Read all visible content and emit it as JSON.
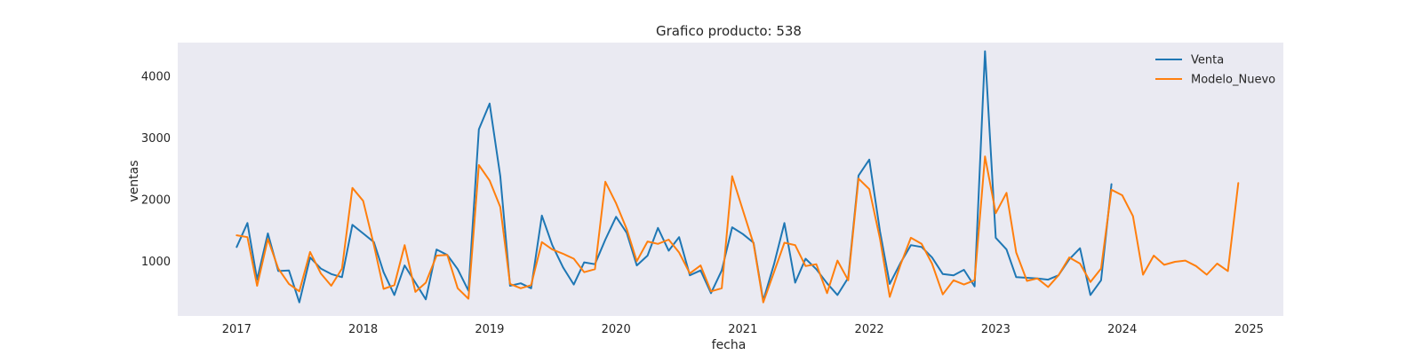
{
  "chart_data": {
    "type": "line",
    "title": "Grafico producto: 538",
    "xlabel": "fecha",
    "ylabel": "ventas",
    "xlim": [
      "2016-07-15",
      "2025-04-10"
    ],
    "ylim": [
      110,
      4550
    ],
    "x_ticks": [
      {
        "date": "2017-01-01",
        "label": "2017"
      },
      {
        "date": "2018-01-01",
        "label": "2018"
      },
      {
        "date": "2019-01-01",
        "label": "2019"
      },
      {
        "date": "2020-01-01",
        "label": "2020"
      },
      {
        "date": "2021-01-01",
        "label": "2021"
      },
      {
        "date": "2022-01-01",
        "label": "2022"
      },
      {
        "date": "2023-01-01",
        "label": "2023"
      },
      {
        "date": "2024-01-01",
        "label": "2024"
      },
      {
        "date": "2025-01-01",
        "label": "2025"
      }
    ],
    "y_ticks": [
      1000,
      2000,
      3000,
      4000
    ],
    "grid": false,
    "background": "#eaeaf2",
    "legend_position": "top-right",
    "x_start": "2017-01",
    "x_freq": "monthly",
    "series": [
      {
        "name": "Venta",
        "color": "#1f77b4",
        "values": [
          1230,
          1620,
          700,
          1450,
          840,
          850,
          330,
          1060,
          880,
          790,
          740,
          1590,
          1450,
          1310,
          820,
          450,
          930,
          650,
          380,
          1190,
          1100,
          870,
          520,
          3140,
          3560,
          2380,
          600,
          640,
          560,
          1740,
          1260,
          900,
          620,
          980,
          950,
          1350,
          1720,
          1460,
          930,
          1090,
          1540,
          1170,
          1390,
          770,
          850,
          480,
          850,
          1550,
          1440,
          1300,
          360,
          950,
          1620,
          650,
          1040,
          870,
          640,
          450,
          730,
          2390,
          2650,
          1480,
          630,
          970,
          1260,
          1230,
          1060,
          790,
          770,
          860,
          590,
          4410,
          1380,
          1190,
          740,
          730,
          720,
          700,
          770,
          1030,
          1210,
          450,
          690,
          2250
        ]
      },
      {
        "name": "Modelo_Nuevo",
        "color": "#ff7f0e",
        "values": [
          1420,
          1390,
          600,
          1360,
          880,
          630,
          510,
          1150,
          800,
          600,
          880,
          2190,
          1980,
          1260,
          550,
          610,
          1260,
          500,
          650,
          1090,
          1100,
          560,
          390,
          2560,
          2310,
          1880,
          630,
          560,
          610,
          1310,
          1190,
          1120,
          1040,
          820,
          870,
          2290,
          1940,
          1520,
          1000,
          1320,
          1280,
          1350,
          1140,
          800,
          930,
          510,
          560,
          2380,
          1830,
          1280,
          330,
          820,
          1300,
          1260,
          920,
          950,
          480,
          1010,
          690,
          2340,
          2170,
          1360,
          420,
          940,
          1380,
          1280,
          960,
          460,
          690,
          620,
          690,
          2700,
          1780,
          2110,
          1140,
          680,
          720,
          580,
          770,
          1060,
          960,
          660,
          880,
          2160,
          2070,
          1730,
          780,
          1090,
          940,
          990,
          1010,
          920,
          780,
          960,
          840,
          2270
        ]
      }
    ]
  }
}
